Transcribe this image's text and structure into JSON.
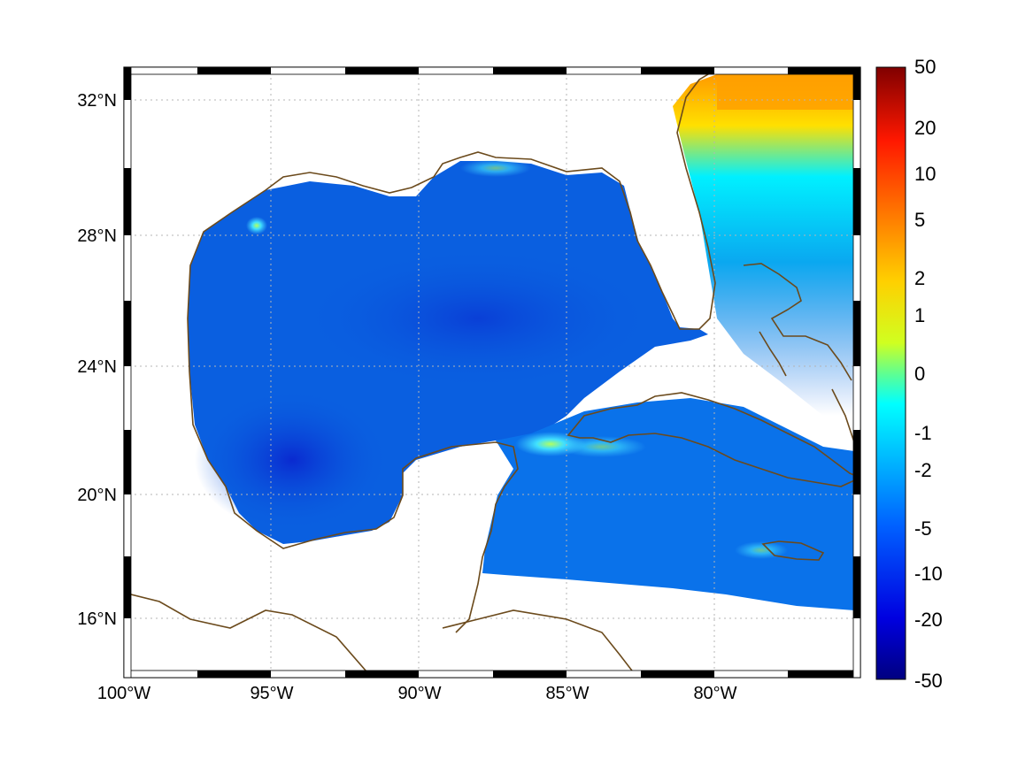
{
  "map": {
    "lon_labels": [
      "100°W",
      "95°W",
      "90°W",
      "85°W",
      "80°W"
    ],
    "lat_labels": [
      "32°N",
      "28°N",
      "24°N",
      "20°N",
      "16°N"
    ],
    "colorbar_labels": [
      "50",
      "20",
      "10",
      "5",
      "2",
      "1",
      "0",
      "-1",
      "-2",
      "-5",
      "-10",
      "-20",
      "-50"
    ],
    "colors": {
      "ocean_base": "#0a5fe0",
      "coastline": "#6b4a1c",
      "land": "#ffffff",
      "grid": "#b4b4b4"
    }
  }
}
